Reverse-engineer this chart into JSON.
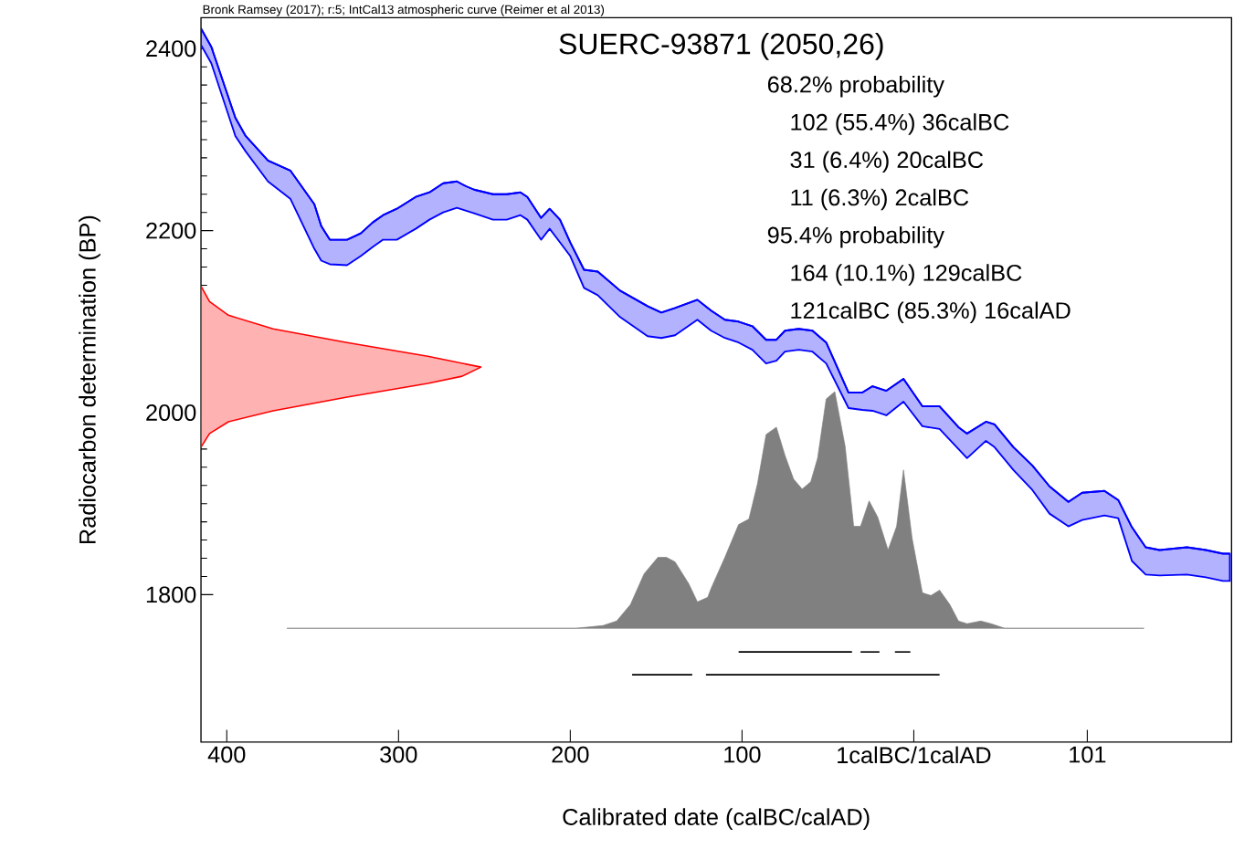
{
  "chart_data": {
    "type": "line",
    "title": "SUERC-93871 (2050,26)",
    "xlabel": "Calibrated date (calBC/calAD)",
    "ylabel": "Radiocarbon determination (BP)",
    "annotations": [
      "Bronk Ramsey (2017); r:5; IntCal13 atmospheric curve (Reimer et al 2013)",
      "68.2% probability",
      "102 (55.4%) 36calBC",
      "31 (6.4%) 20calBC",
      "11 (6.3%) 2calBC",
      "95.4% probability",
      "164 (10.1%) 129calBC",
      "121calBC (85.3%) 16calAD"
    ],
    "xlim": [
      -415,
      185
    ],
    "ylim": [
      1638,
      2434
    ],
    "xticks": [
      {
        "value": -400,
        "label": "400"
      },
      {
        "value": -300,
        "label": "300"
      },
      {
        "value": -200,
        "label": "200"
      },
      {
        "value": -100,
        "label": "100"
      },
      {
        "value": 0,
        "label": "1calBC/1calAD"
      },
      101
    ],
    "yticks": [
      1800,
      2000,
      2200,
      2400
    ],
    "grid": false,
    "series": [
      {
        "type": "line",
        "color": "#0000ff",
        "x": [
          -415,
          -409,
          -395,
          -389,
          -376,
          -363,
          -349,
          -345,
          -340,
          -330,
          -322,
          -315,
          -309,
          -301,
          -290,
          -282,
          -274,
          -266,
          -261,
          -256,
          -245,
          -237,
          -229,
          -225,
          -217,
          -212,
          -206,
          -200,
          -192,
          -184,
          -171,
          -155,
          -147,
          -139,
          -126,
          -118,
          -110,
          -102,
          -94,
          -86,
          -80,
          -75,
          -67,
          -59,
          -51,
          -38,
          -30,
          -24,
          -16,
          -6,
          5,
          15,
          26,
          31,
          42,
          47,
          58,
          69,
          79,
          90,
          98,
          111,
          119,
          127,
          135,
          143,
          159,
          170,
          180,
          184
        ],
        "values": [
          2422,
          2402,
          2324,
          2304,
          2277,
          2266,
          2229,
          2205,
          2190,
          2190,
          2197,
          2209,
          2217,
          2224,
          2237,
          2242,
          2252,
          2254,
          2249,
          2245,
          2240,
          2240,
          2242,
          2237,
          2214,
          2224,
          2212,
          2187,
          2157,
          2155,
          2134,
          2117,
          2110,
          2115,
          2124,
          2112,
          2102,
          2100,
          2095,
          2080,
          2080,
          2090,
          2092,
          2090,
          2077,
          2022,
          2022,
          2029,
          2024,
          2037,
          2007,
          2007,
          1984,
          1977,
          1990,
          1987,
          1962,
          1942,
          1919,
          1902,
          1912,
          1914,
          1904,
          1874,
          1852,
          1849,
          1852,
          1849,
          1845,
          1845
        ],
        "upper": [
          2422,
          2402,
          2324,
          2304,
          2277,
          2266,
          2229,
          2205,
          2190,
          2190,
          2197,
          2209,
          2217,
          2224,
          2237,
          2242,
          2252,
          2254,
          2249,
          2245,
          2240,
          2240,
          2242,
          2237,
          2214,
          2224,
          2212,
          2187,
          2157,
          2155,
          2134,
          2117,
          2110,
          2115,
          2124,
          2112,
          2102,
          2100,
          2095,
          2080,
          2080,
          2090,
          2092,
          2090,
          2077,
          2022,
          2022,
          2029,
          2024,
          2037,
          2007,
          2007,
          1984,
          1977,
          1990,
          1987,
          1962,
          1942,
          1919,
          1902,
          1912,
          1914,
          1904,
          1874,
          1852,
          1849,
          1852,
          1849,
          1845,
          1845
        ],
        "lower": [
          2404,
          2384,
          2304,
          2287,
          2254,
          2235,
          2180,
          2167,
          2163,
          2162,
          2172,
          2182,
          2190,
          2190,
          2202,
          2212,
          2220,
          2225,
          2222,
          2219,
          2212,
          2212,
          2217,
          2212,
          2190,
          2202,
          2187,
          2172,
          2137,
          2129,
          2105,
          2084,
          2082,
          2085,
          2102,
          2090,
          2082,
          2077,
          2069,
          2054,
          2057,
          2067,
          2069,
          2067,
          2054,
          2005,
          2003,
          2002,
          1997,
          2012,
          1985,
          1982,
          1960,
          1950,
          1969,
          1962,
          1937,
          1915,
          1889,
          1875,
          1882,
          1887,
          1884,
          1837,
          1822,
          1821,
          1822,
          1819,
          1815,
          1815
        ]
      },
      {
        "type": "area",
        "color": "#ff0000",
        "x": [
          -415,
          -410,
          -399,
          -373,
          -330,
          -283,
          -252,
          -263,
          -283,
          -330,
          -373,
          -399,
          -410,
          -415
        ],
        "values": [
          2139,
          2122,
          2107,
          2092,
          2077,
          2062,
          2050,
          2040,
          2032,
          2017,
          2002,
          1990,
          1977,
          1962
        ]
      },
      {
        "type": "area",
        "color": "#808080",
        "x": [
          -365,
          -197,
          -181,
          -173,
          -165,
          -157,
          -149,
          -144,
          -139,
          -131,
          -126,
          -120,
          -118,
          -110,
          -102,
          -96,
          -91,
          -86,
          -80,
          -75,
          -70,
          -65,
          -60,
          -56,
          -51,
          -46,
          -40,
          -35,
          -31,
          -26,
          -21,
          -15,
          -10,
          -6,
          -1,
          5,
          10,
          15,
          21,
          26,
          31,
          39,
          45,
          53,
          134
        ],
        "values": [
          1763,
          1763,
          1766,
          1771,
          1789,
          1823,
          1841,
          1841,
          1836,
          1812,
          1792,
          1797,
          1807,
          1841,
          1877,
          1883,
          1922,
          1976,
          1984,
          1953,
          1927,
          1916,
          1924,
          1950,
          2015,
          2023,
          1963,
          1875,
          1875,
          1903,
          1885,
          1849,
          1875,
          1937,
          1862,
          1802,
          1799,
          1805,
          1789,
          1771,
          1768,
          1771,
          1768,
          1763,
          1763
        ]
      },
      {
        "color": "#000000",
        "x": [
          -102,
          -36
        ],
        "values": [
          1737,
          1737
        ]
      },
      {
        "color": "#000000",
        "x": [
          -31,
          -20
        ],
        "values": [
          1737,
          1737
        ]
      },
      {
        "color": "#000000",
        "x": [
          -11,
          -2
        ],
        "values": [
          1737,
          1737
        ]
      },
      {
        "color": "#000000",
        "x": [
          -164,
          -129
        ],
        "values": [
          1712,
          1712
        ]
      },
      {
        "color": "#000000",
        "x": [
          -121,
          15
        ],
        "values": [
          1712,
          1712
        ]
      }
    ]
  }
}
